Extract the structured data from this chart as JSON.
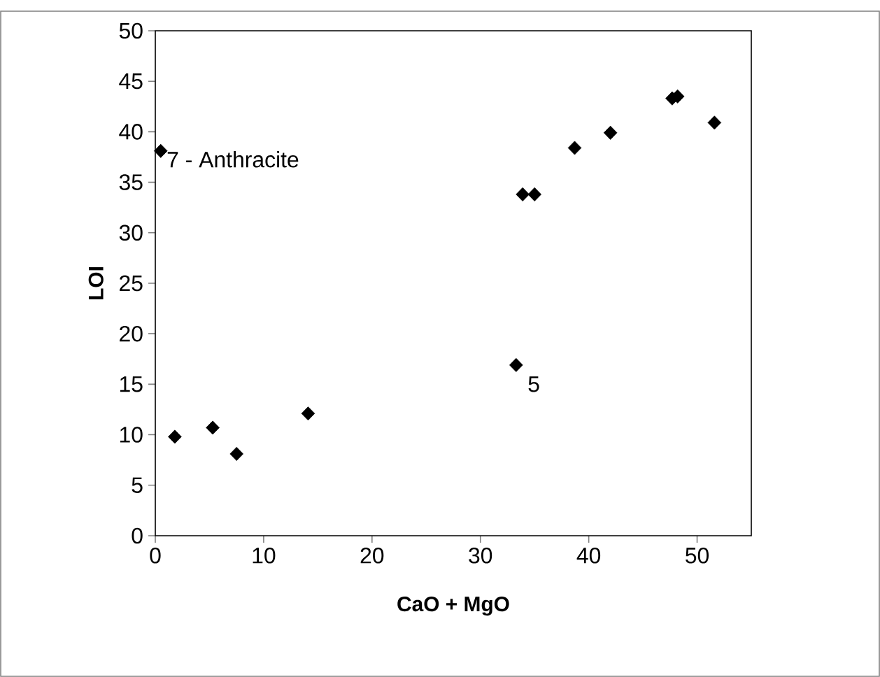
{
  "chart_data": {
    "type": "scatter",
    "xlabel": "CaO + MgO",
    "ylabel": "LOI",
    "x": [
      0.5,
      1.8,
      5.3,
      7.5,
      14.1,
      33.3,
      33.9,
      35.0,
      38.7,
      42.0,
      47.7,
      48.2,
      51.6
    ],
    "values": [
      38.1,
      9.8,
      10.7,
      8.1,
      12.1,
      16.9,
      33.8,
      33.8,
      38.4,
      39.9,
      43.3,
      43.5,
      40.9
    ],
    "color": "#000000",
    "marker": "diamond",
    "xlim": [
      0,
      55
    ],
    "ylim": [
      0,
      50
    ],
    "xticks": [
      0,
      10,
      20,
      30,
      40,
      50
    ],
    "yticks": [
      0,
      5,
      10,
      15,
      20,
      25,
      30,
      35,
      40,
      45,
      50
    ],
    "annotations": [
      {
        "text": "7 - Anthracite",
        "x": 0.5,
        "y": 38.1
      },
      {
        "text": "5",
        "x": 33.3,
        "y": 16.9
      }
    ],
    "line_style": "none"
  }
}
